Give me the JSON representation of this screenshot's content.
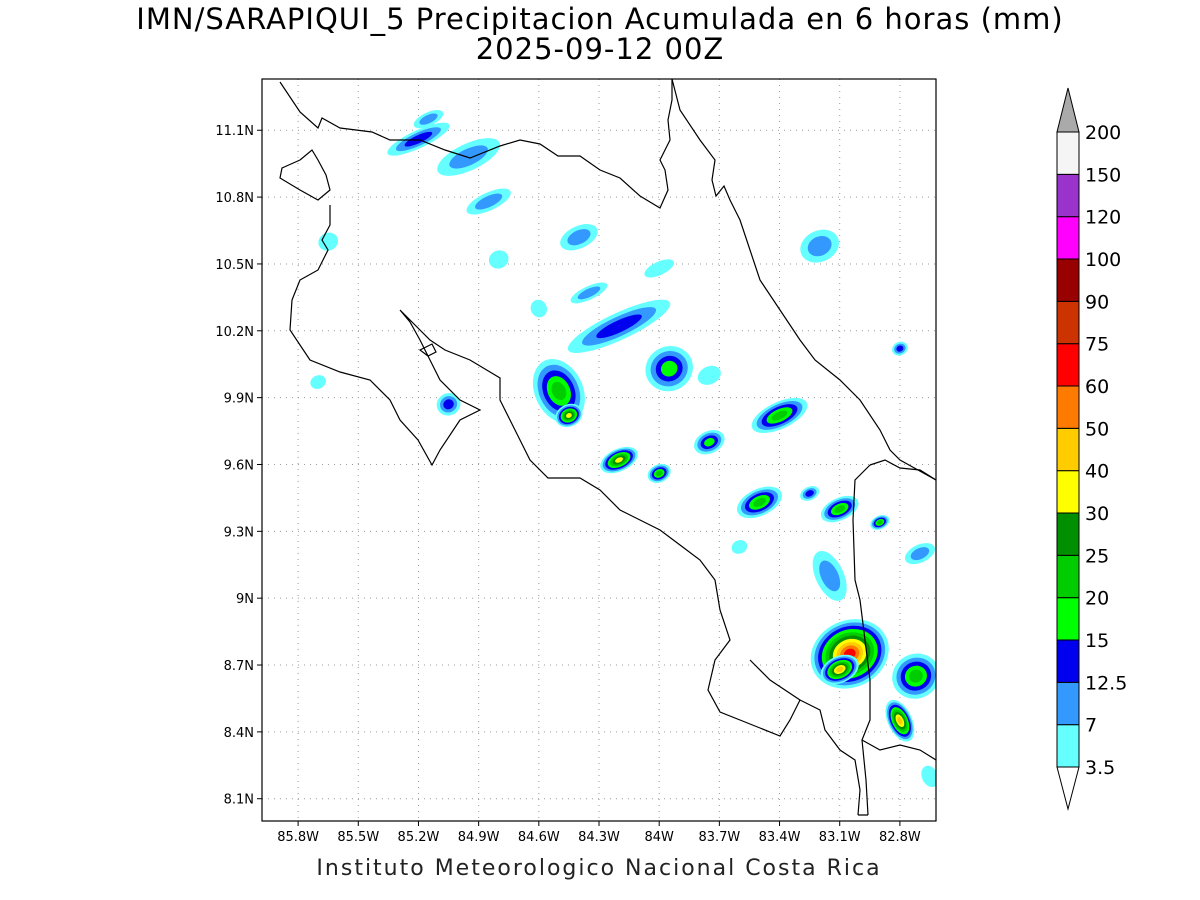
{
  "title_line1": "IMN/SARAPIQUI_5 Precipitacion Acumulada en 6 horas (mm)",
  "title_line2": "2025-09-12 00Z",
  "footer": "Instituto Meteorologico Nacional Costa Rica",
  "map": {
    "lon_range": [
      -85.98,
      -82.62
    ],
    "lat_range": [
      8.0,
      11.33
    ],
    "lon_ticks": [
      {
        "value": -85.8,
        "label": "85.8W"
      },
      {
        "value": -85.5,
        "label": "85.5W"
      },
      {
        "value": -85.2,
        "label": "85.2W"
      },
      {
        "value": -84.9,
        "label": "84.9W"
      },
      {
        "value": -84.6,
        "label": "84.6W"
      },
      {
        "value": -84.3,
        "label": "84.3W"
      },
      {
        "value": -84.0,
        "label": "84W"
      },
      {
        "value": -83.7,
        "label": "83.7W"
      },
      {
        "value": -83.4,
        "label": "83.4W"
      },
      {
        "value": -83.1,
        "label": "83.1W"
      },
      {
        "value": -82.8,
        "label": "82.8W"
      }
    ],
    "lat_ticks": [
      {
        "value": 11.1,
        "label": "11.1N"
      },
      {
        "value": 10.8,
        "label": "10.8N"
      },
      {
        "value": 10.5,
        "label": "10.5N"
      },
      {
        "value": 10.2,
        "label": "10.2N"
      },
      {
        "value": 9.9,
        "label": "9.9N"
      },
      {
        "value": 9.6,
        "label": "9.6N"
      },
      {
        "value": 9.3,
        "label": "9.3N"
      },
      {
        "value": 9.0,
        "label": "9N"
      },
      {
        "value": 8.7,
        "label": "8.7N"
      },
      {
        "value": 8.4,
        "label": "8.4N"
      },
      {
        "value": 8.1,
        "label": "8.1N"
      }
    ],
    "grid": "dotted"
  },
  "colorbar": {
    "units": "mm",
    "levels": [
      "3.5",
      "7",
      "12.5",
      "15",
      "20",
      "25",
      "30",
      "40",
      "50",
      "60",
      "75",
      "90",
      "100",
      "120",
      "150",
      "200"
    ],
    "colors": [
      "#66ffff",
      "#3399ff",
      "#0000ee",
      "#00ff00",
      "#00cc00",
      "#008f00",
      "#ffff00",
      "#ffcc00",
      "#ff7a00",
      "#ff0000",
      "#cc3300",
      "#990000",
      "#ff00ff",
      "#9933cc",
      "#f5f5f5",
      "#aaaaaa"
    ]
  },
  "precip_cells": [
    {
      "lon": -85.15,
      "lat": 11.15,
      "rx": 0.08,
      "ry": 0.03,
      "level": 1
    },
    {
      "lon": -85.2,
      "lat": 11.06,
      "rx": 0.17,
      "ry": 0.04,
      "level": 2
    },
    {
      "lon": -84.95,
      "lat": 10.98,
      "rx": 0.17,
      "ry": 0.06,
      "level": 1
    },
    {
      "lon": -84.85,
      "lat": 10.78,
      "rx": 0.12,
      "ry": 0.04,
      "level": 1
    },
    {
      "lon": -85.65,
      "lat": 10.6,
      "rx": 0.05,
      "ry": 0.04,
      "level": 0
    },
    {
      "lon": -84.4,
      "lat": 10.62,
      "rx": 0.1,
      "ry": 0.05,
      "level": 1
    },
    {
      "lon": -84.8,
      "lat": 10.52,
      "rx": 0.05,
      "ry": 0.04,
      "level": 0
    },
    {
      "lon": -84.0,
      "lat": 10.48,
      "rx": 0.08,
      "ry": 0.03,
      "level": 0
    },
    {
      "lon": -83.2,
      "lat": 10.58,
      "rx": 0.1,
      "ry": 0.07,
      "level": 1
    },
    {
      "lon": -84.35,
      "lat": 10.37,
      "rx": 0.1,
      "ry": 0.03,
      "level": 1
    },
    {
      "lon": -84.2,
      "lat": 10.22,
      "rx": 0.28,
      "ry": 0.06,
      "level": 2
    },
    {
      "lon": -84.6,
      "lat": 10.3,
      "rx": 0.04,
      "ry": 0.04,
      "level": 0
    },
    {
      "lon": -83.95,
      "lat": 10.03,
      "rx": 0.12,
      "ry": 0.1,
      "level": 3
    },
    {
      "lon": -83.75,
      "lat": 10.0,
      "rx": 0.06,
      "ry": 0.04,
      "level": 0
    },
    {
      "lon": -82.8,
      "lat": 10.12,
      "rx": 0.04,
      "ry": 0.03,
      "level": 2
    },
    {
      "lon": -85.7,
      "lat": 9.97,
      "rx": 0.04,
      "ry": 0.03,
      "level": 0
    },
    {
      "lon": -85.05,
      "lat": 9.87,
      "rx": 0.06,
      "ry": 0.05,
      "level": 2
    },
    {
      "lon": -84.5,
      "lat": 9.93,
      "rx": 0.12,
      "ry": 0.15,
      "level": 4
    },
    {
      "lon": -84.45,
      "lat": 9.82,
      "rx": 0.07,
      "ry": 0.05,
      "level": 6
    },
    {
      "lon": -83.4,
      "lat": 9.82,
      "rx": 0.15,
      "ry": 0.06,
      "level": 4
    },
    {
      "lon": -83.75,
      "lat": 9.7,
      "rx": 0.08,
      "ry": 0.05,
      "level": 3
    },
    {
      "lon": -84.2,
      "lat": 9.62,
      "rx": 0.1,
      "ry": 0.05,
      "level": 6
    },
    {
      "lon": -84.0,
      "lat": 9.56,
      "rx": 0.06,
      "ry": 0.04,
      "level": 4
    },
    {
      "lon": -83.5,
      "lat": 9.43,
      "rx": 0.12,
      "ry": 0.06,
      "level": 4
    },
    {
      "lon": -83.1,
      "lat": 9.4,
      "rx": 0.1,
      "ry": 0.05,
      "level": 4
    },
    {
      "lon": -82.9,
      "lat": 9.34,
      "rx": 0.05,
      "ry": 0.03,
      "level": 4
    },
    {
      "lon": -83.25,
      "lat": 9.47,
      "rx": 0.05,
      "ry": 0.03,
      "level": 2
    },
    {
      "lon": -83.6,
      "lat": 9.23,
      "rx": 0.04,
      "ry": 0.03,
      "level": 0
    },
    {
      "lon": -83.15,
      "lat": 9.1,
      "rx": 0.07,
      "ry": 0.12,
      "level": 1
    },
    {
      "lon": -82.7,
      "lat": 9.2,
      "rx": 0.08,
      "ry": 0.04,
      "level": 1
    },
    {
      "lon": -83.05,
      "lat": 8.75,
      "rx": 0.2,
      "ry": 0.15,
      "level": 9
    },
    {
      "lon": -83.1,
      "lat": 8.68,
      "rx": 0.1,
      "ry": 0.06,
      "level": 7
    },
    {
      "lon": -82.72,
      "lat": 8.65,
      "rx": 0.12,
      "ry": 0.1,
      "level": 4
    },
    {
      "lon": -82.8,
      "lat": 8.45,
      "rx": 0.06,
      "ry": 0.1,
      "level": 7
    },
    {
      "lon": -82.65,
      "lat": 8.2,
      "rx": 0.04,
      "ry": 0.05,
      "level": 0
    }
  ]
}
